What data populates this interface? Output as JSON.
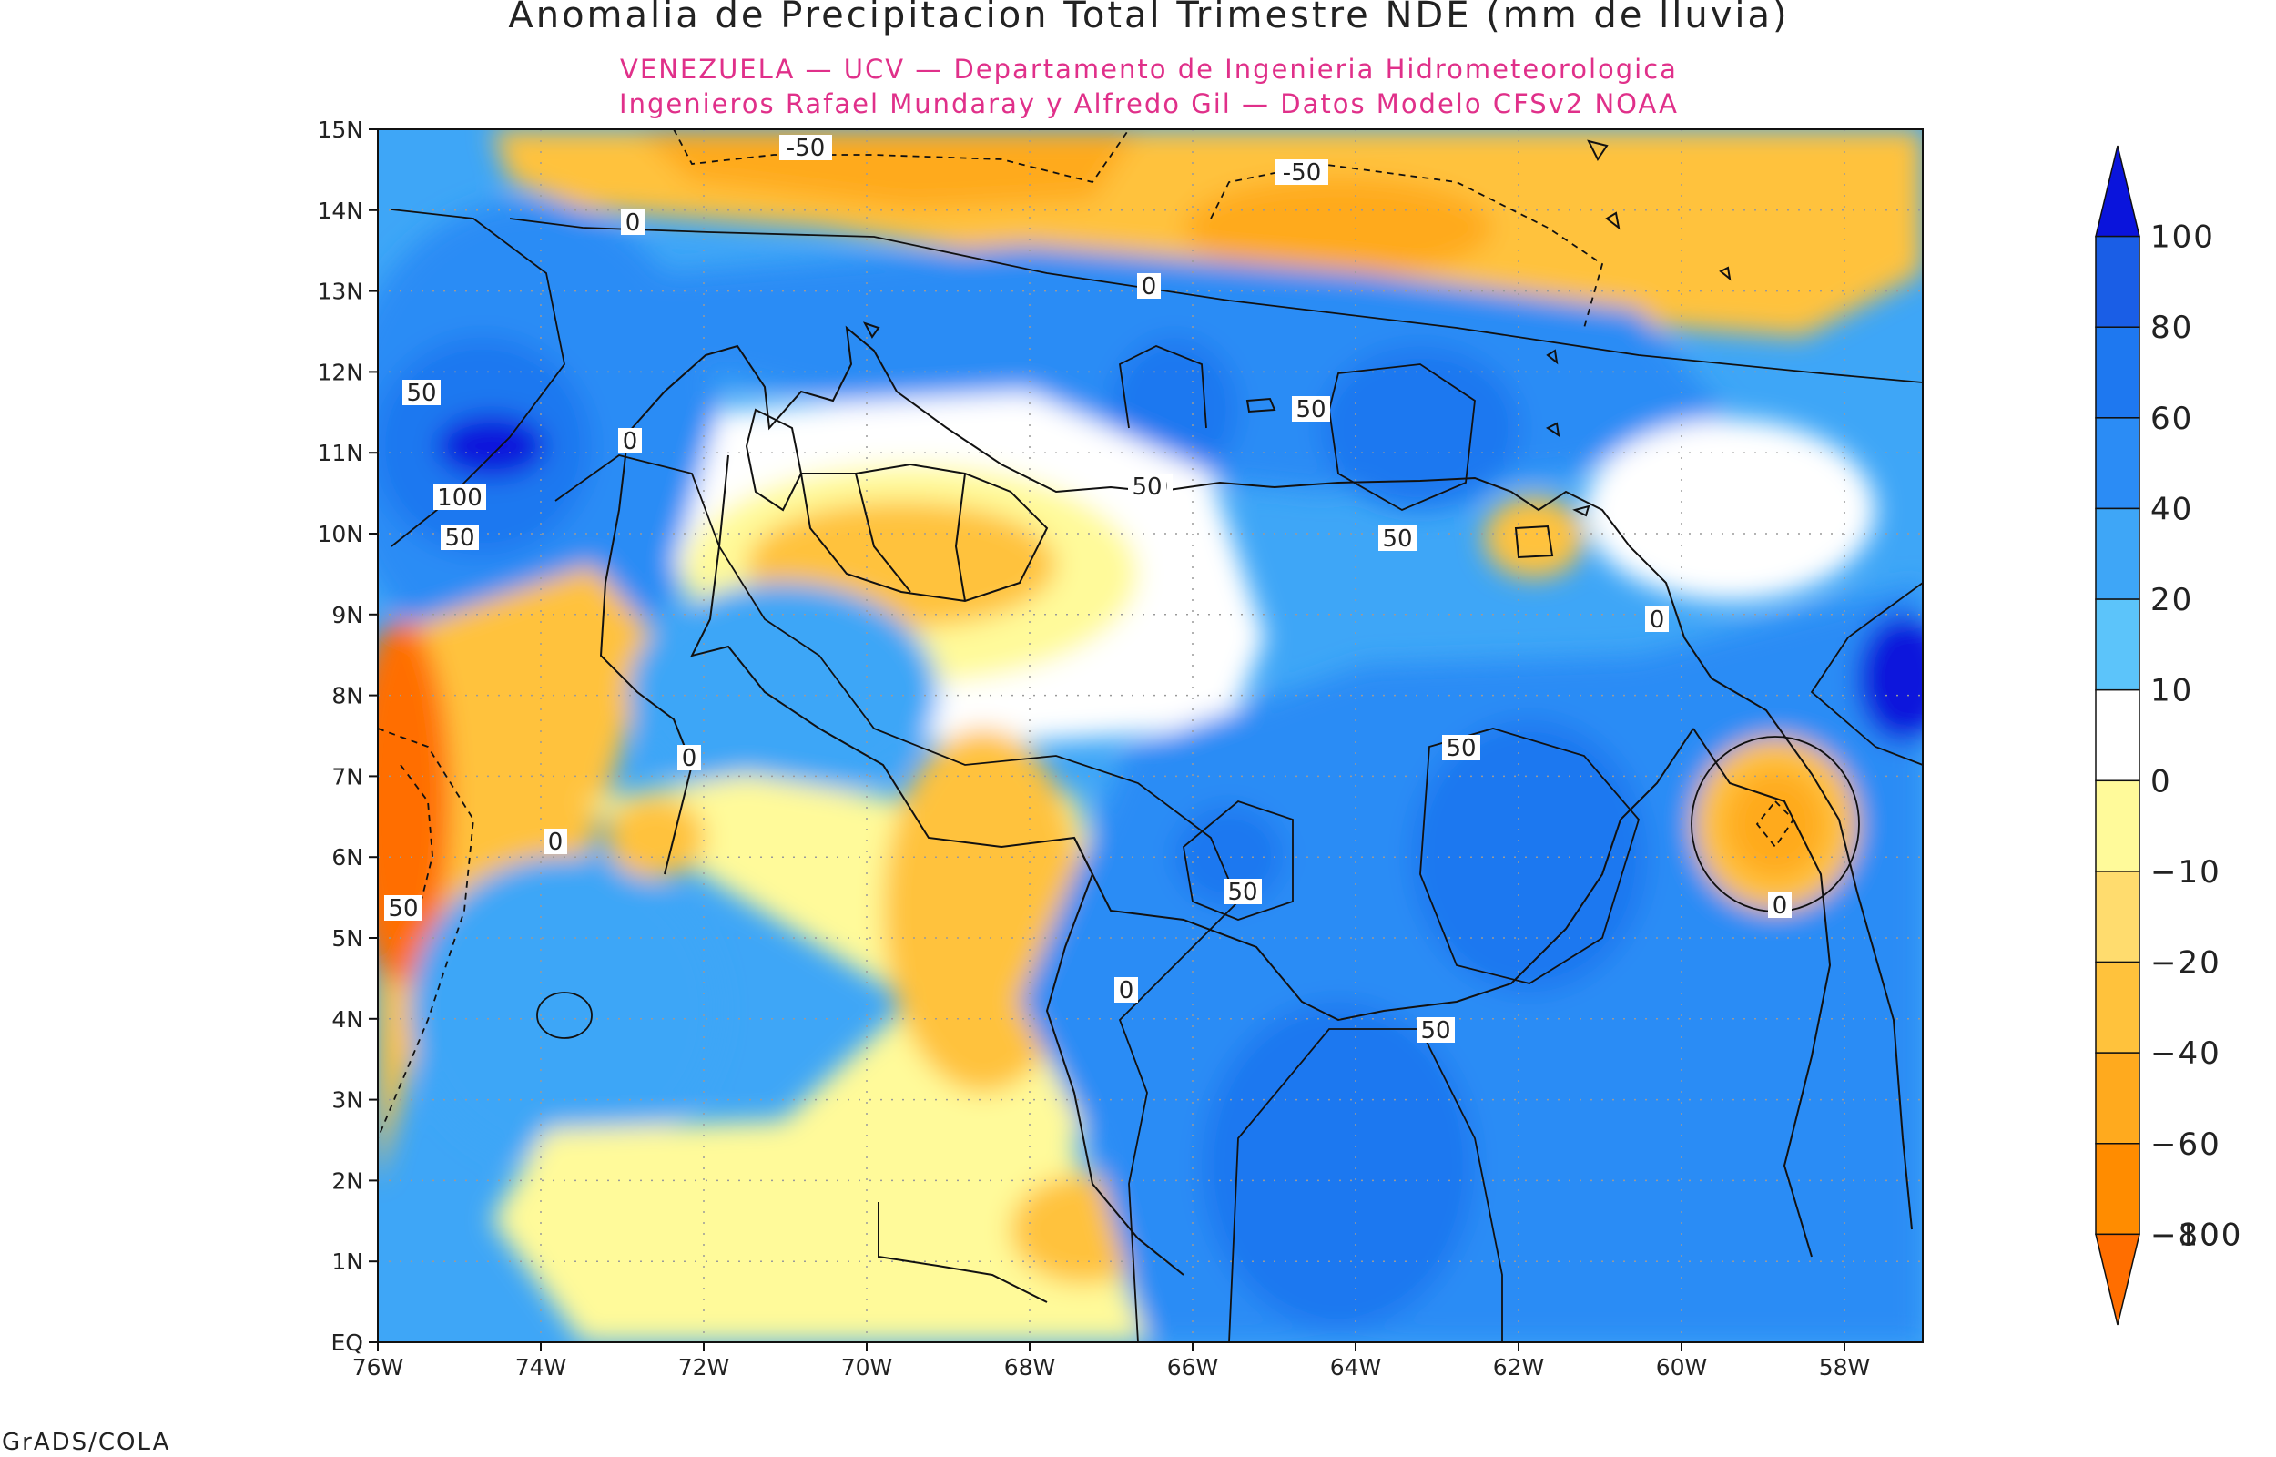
{
  "title": "Anomalia de Precipitacion Total Trimestre NDE (mm de lluvia)",
  "subtitle_1": "VENEZUELA — UCV — Departamento de Ingenieria Hidrometeorologica",
  "subtitle_2": "Ingenieros Rafael Mundaray y Alfredo Gil — Datos Modelo CFSv2 NOAA",
  "footer": "GrADS/COLA",
  "subtitle_color": "#e0308a",
  "lat_labels": [
    "15N",
    "14N",
    "13N",
    "12N",
    "11N",
    "10N",
    "9N",
    "8N",
    "7N",
    "6N",
    "5N",
    "4N",
    "3N",
    "2N",
    "1N",
    "EQ"
  ],
  "lon_labels": [
    "76W",
    "74W",
    "72W",
    "70W",
    "68W",
    "66W",
    "64W",
    "62W",
    "60W",
    "58W"
  ],
  "legend": {
    "levels": [
      "100",
      "80",
      "60",
      "40",
      "20",
      "10",
      "0",
      "−10",
      "−20",
      "−40",
      "−60",
      "−80",
      "−100"
    ],
    "colors": [
      "#0a14dc",
      "#1a5ee6",
      "#1e78f0",
      "#2b8cf5",
      "#3ea6f7",
      "#5cc4fa",
      "#ffffff",
      "#fffa9a",
      "#ffdc6e",
      "#ffc23c",
      "#ffaa1e",
      "#ff8c00",
      "#ff6e00"
    ]
  },
  "contour_labels": [
    "-50",
    "-50",
    "0",
    "0",
    "0",
    "0",
    "0",
    "0",
    "0",
    "0",
    "0",
    "50",
    "50",
    "50",
    "50",
    "50",
    "50",
    "50",
    "50",
    "50",
    "100"
  ],
  "fill_colors": {
    "deep_blue": "#0a14dc",
    "blue_80": "#1a5ee6",
    "blue_60": "#1e78f0",
    "blue_40": "#2b8cf5",
    "blue_20": "#3ea6f7",
    "blue_10": "#5cc4fa",
    "white": "#ffffff",
    "yellow_10": "#fffa9a",
    "yellow_20": "#ffdc6e",
    "orange_40": "#ffc23c",
    "orange_60": "#ffaa1e",
    "orange_80": "#ff8c00",
    "orange_100": "#ff6e00"
  }
}
